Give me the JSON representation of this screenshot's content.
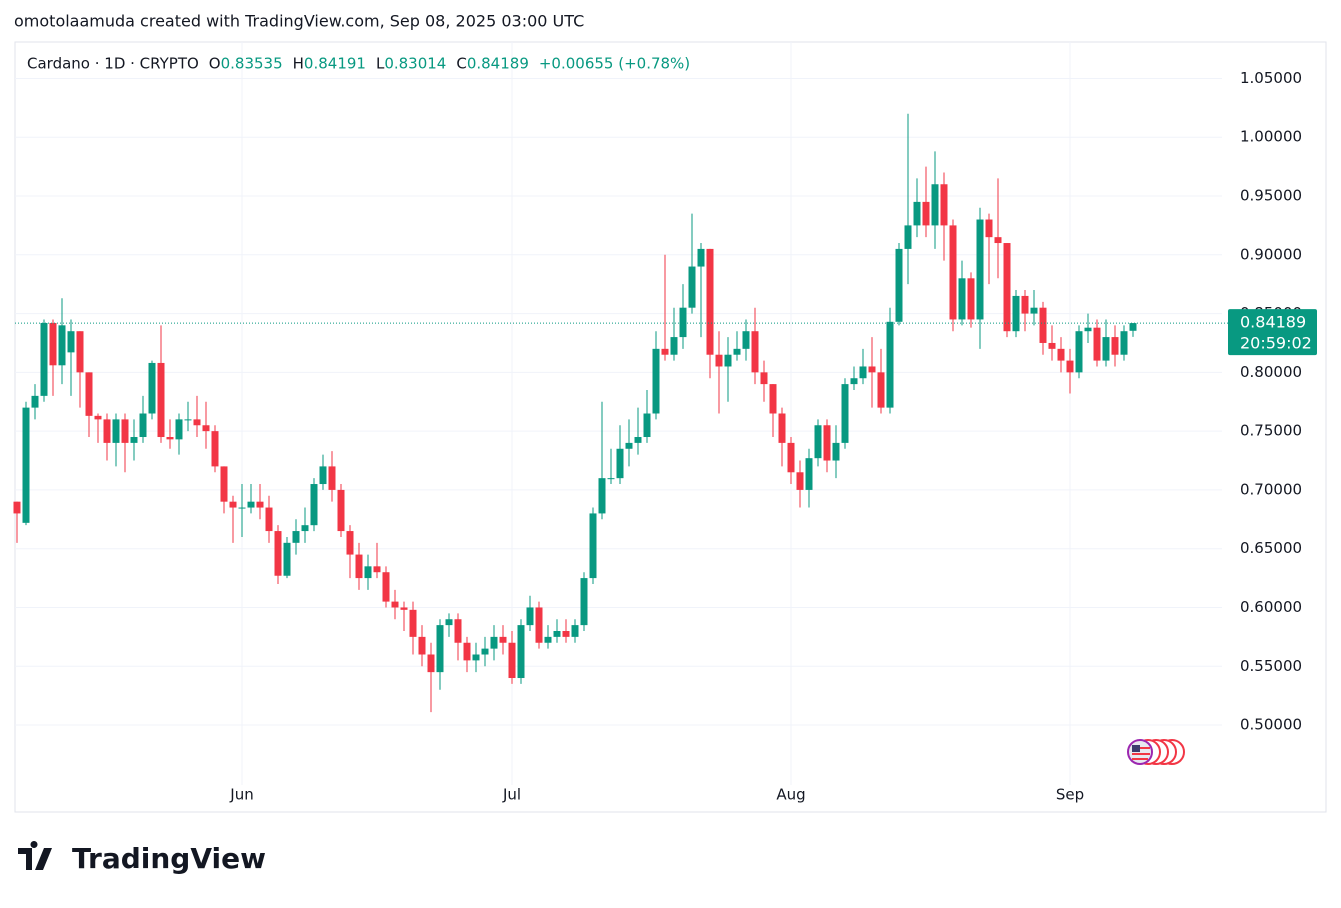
{
  "header": "omotolaamuda created with TradingView.com, Sep 08, 2025 03:00 UTC",
  "brand": "TradingView",
  "chart_data": {
    "type": "candlestick",
    "symbol": "Cardano · 1D · CRYPTO",
    "ohlc_labels": [
      "O",
      "H",
      "L",
      "C"
    ],
    "change": "+0.00655 (+0.78%)",
    "countdown": "20:59:02",
    "up_color": "#089981",
    "down_color": "#f23645",
    "grid": true,
    "categories": [
      null,
      null,
      null,
      null,
      null,
      null,
      null,
      null,
      null,
      null,
      null,
      null,
      null,
      null,
      null,
      null,
      null,
      null,
      null,
      null,
      null,
      null,
      null,
      null,
      null,
      "Jun",
      null,
      null,
      null,
      null,
      null,
      null,
      null,
      null,
      null,
      null,
      null,
      null,
      null,
      null,
      null,
      null,
      null,
      null,
      null,
      null,
      null,
      null,
      null,
      null,
      null,
      null,
      null,
      null,
      null,
      "Jul",
      null,
      null,
      null,
      null,
      null,
      null,
      null,
      null,
      null,
      null,
      null,
      null,
      null,
      null,
      null,
      null,
      null,
      null,
      null,
      null,
      null,
      null,
      null,
      null,
      null,
      null,
      null,
      null,
      null,
      null,
      "Aug",
      null,
      null,
      null,
      null,
      null,
      null,
      null,
      null,
      null,
      null,
      null,
      null,
      null,
      null,
      null,
      null,
      null,
      null,
      null,
      null,
      null,
      null,
      null,
      null,
      null,
      null,
      null,
      null,
      null,
      null,
      "Sep",
      null,
      null,
      null,
      null,
      null,
      null,
      null
    ],
    "open": [
      0.69,
      0.672,
      0.77,
      0.78,
      0.842,
      0.806,
      0.817,
      0.835,
      0.8,
      0.763,
      0.76,
      0.74,
      0.76,
      0.74,
      0.745,
      0.765,
      0.808,
      0.745,
      0.743,
      0.76,
      0.76,
      0.755,
      0.75,
      0.72,
      0.69,
      0.685,
      0.685,
      0.69,
      0.685,
      0.665,
      0.627,
      0.655,
      0.665,
      0.67,
      0.705,
      0.72,
      0.7,
      0.665,
      0.645,
      0.625,
      0.635,
      0.63,
      0.605,
      0.6,
      0.598,
      0.575,
      0.56,
      0.545,
      0.585,
      0.59,
      0.57,
      0.555,
      0.56,
      0.565,
      0.575,
      0.57,
      0.54,
      0.585,
      0.6,
      0.57,
      0.575,
      0.58,
      0.575,
      0.585,
      0.625,
      0.68,
      0.71,
      0.71,
      0.735,
      0.74,
      0.745,
      0.765,
      0.82,
      0.815,
      0.83,
      0.855,
      0.89,
      0.905,
      0.815,
      0.805,
      0.815,
      0.82,
      0.835,
      0.8,
      0.79,
      0.765,
      0.74,
      0.715,
      0.7,
      0.727,
      0.755,
      0.725,
      0.74,
      0.79,
      0.795,
      0.805,
      0.8,
      0.77,
      0.843,
      0.905,
      0.925,
      0.945,
      0.925,
      0.96,
      0.925,
      0.845,
      0.88,
      0.845,
      0.93,
      0.915,
      0.91,
      0.835,
      0.865,
      0.85,
      0.855,
      0.825,
      0.82,
      0.81,
      0.8,
      0.835,
      0.838,
      0.81,
      0.83,
      0.815,
      0.83535
    ],
    "close": [
      0.68,
      0.77,
      0.78,
      0.842,
      0.806,
      0.84,
      0.835,
      0.8,
      0.763,
      0.76,
      0.74,
      0.76,
      0.74,
      0.745,
      0.765,
      0.808,
      0.745,
      0.743,
      0.76,
      0.76,
      0.755,
      0.75,
      0.72,
      0.69,
      0.685,
      0.685,
      0.69,
      0.685,
      0.665,
      0.627,
      0.655,
      0.665,
      0.67,
      0.705,
      0.72,
      0.7,
      0.665,
      0.645,
      0.625,
      0.635,
      0.63,
      0.605,
      0.6,
      0.598,
      0.575,
      0.56,
      0.545,
      0.585,
      0.59,
      0.57,
      0.555,
      0.56,
      0.565,
      0.575,
      0.57,
      0.54,
      0.585,
      0.6,
      0.57,
      0.575,
      0.58,
      0.575,
      0.585,
      0.625,
      0.68,
      0.71,
      0.71,
      0.735,
      0.74,
      0.745,
      0.765,
      0.82,
      0.815,
      0.83,
      0.855,
      0.89,
      0.905,
      0.815,
      0.805,
      0.815,
      0.82,
      0.835,
      0.8,
      0.79,
      0.765,
      0.74,
      0.715,
      0.7,
      0.727,
      0.755,
      0.725,
      0.74,
      0.79,
      0.795,
      0.805,
      0.8,
      0.77,
      0.843,
      0.905,
      0.925,
      0.945,
      0.925,
      0.96,
      0.925,
      0.845,
      0.88,
      0.845,
      0.93,
      0.915,
      0.91,
      0.835,
      0.865,
      0.85,
      0.855,
      0.825,
      0.82,
      0.81,
      0.8,
      0.835,
      0.838,
      0.81,
      0.83,
      0.815,
      0.835,
      0.84189
    ],
    "high": [
      0.69,
      0.775,
      0.79,
      0.845,
      0.845,
      0.863,
      0.845,
      0.835,
      0.8,
      0.765,
      0.765,
      0.765,
      0.765,
      0.76,
      0.78,
      0.81,
      0.84,
      0.76,
      0.765,
      0.775,
      0.78,
      0.775,
      0.755,
      0.72,
      0.695,
      0.705,
      0.705,
      0.705,
      0.695,
      0.67,
      0.66,
      0.675,
      0.685,
      0.71,
      0.73,
      0.733,
      0.705,
      0.67,
      0.655,
      0.645,
      0.655,
      0.635,
      0.615,
      0.605,
      0.605,
      0.585,
      0.57,
      0.59,
      0.595,
      0.595,
      0.575,
      0.57,
      0.575,
      0.585,
      0.585,
      0.58,
      0.59,
      0.61,
      0.605,
      0.585,
      0.59,
      0.59,
      0.59,
      0.63,
      0.685,
      0.775,
      0.735,
      0.755,
      0.76,
      0.77,
      0.785,
      0.835,
      0.9,
      0.855,
      0.875,
      0.935,
      0.91,
      0.905,
      0.835,
      0.83,
      0.835,
      0.845,
      0.855,
      0.81,
      0.79,
      0.77,
      0.745,
      0.725,
      0.735,
      0.76,
      0.76,
      0.755,
      0.795,
      0.805,
      0.82,
      0.83,
      0.82,
      0.855,
      0.91,
      1.02,
      0.965,
      0.975,
      0.988,
      0.97,
      0.93,
      0.895,
      0.885,
      0.94,
      0.935,
      0.965,
      0.91,
      0.87,
      0.87,
      0.87,
      0.86,
      0.84,
      0.83,
      0.82,
      0.84,
      0.85,
      0.845,
      0.845,
      0.84,
      0.84,
      0.84191
    ],
    "low": [
      0.655,
      0.67,
      0.76,
      0.775,
      0.78,
      0.79,
      0.78,
      0.77,
      0.745,
      0.74,
      0.725,
      0.72,
      0.715,
      0.725,
      0.74,
      0.76,
      0.74,
      0.735,
      0.73,
      0.75,
      0.745,
      0.735,
      0.715,
      0.68,
      0.655,
      0.66,
      0.68,
      0.675,
      0.655,
      0.62,
      0.625,
      0.645,
      0.655,
      0.665,
      0.7,
      0.69,
      0.66,
      0.625,
      0.615,
      0.615,
      0.625,
      0.6,
      0.59,
      0.58,
      0.56,
      0.55,
      0.511,
      0.53,
      0.575,
      0.555,
      0.545,
      0.545,
      0.55,
      0.555,
      0.56,
      0.535,
      0.535,
      0.58,
      0.565,
      0.565,
      0.57,
      0.57,
      0.57,
      0.58,
      0.62,
      0.675,
      0.705,
      0.705,
      0.72,
      0.73,
      0.74,
      0.76,
      0.81,
      0.81,
      0.82,
      0.85,
      0.83,
      0.795,
      0.765,
      0.775,
      0.81,
      0.81,
      0.79,
      0.775,
      0.745,
      0.72,
      0.705,
      0.685,
      0.685,
      0.72,
      0.715,
      0.71,
      0.735,
      0.785,
      0.79,
      0.77,
      0.765,
      0.765,
      0.84,
      0.875,
      0.915,
      0.915,
      0.905,
      0.895,
      0.835,
      0.84,
      0.838,
      0.82,
      0.875,
      0.88,
      0.83,
      0.83,
      0.835,
      0.84,
      0.815,
      0.81,
      0.8,
      0.782,
      0.795,
      0.825,
      0.805,
      0.805,
      0.805,
      0.81,
      0.83014
    ],
    "ylim": [
      0.449,
      1.081
    ],
    "yticks": [
      {
        "value": 0.5,
        "label": "0.50000"
      },
      {
        "value": 0.55,
        "label": "0.55000"
      },
      {
        "value": 0.6,
        "label": "0.60000"
      },
      {
        "value": 0.65,
        "label": "0.65000"
      },
      {
        "value": 0.7,
        "label": "0.70000"
      },
      {
        "value": 0.75,
        "label": "0.75000"
      },
      {
        "value": 0.8,
        "label": "0.80000"
      },
      {
        "value": 0.85,
        "label": "0.85000"
      },
      {
        "value": 0.9,
        "label": "0.90000"
      },
      {
        "value": 0.95,
        "label": "0.95000"
      },
      {
        "value": 1.0,
        "label": "1.00000"
      },
      {
        "value": 1.05,
        "label": "1.05000"
      }
    ]
  }
}
